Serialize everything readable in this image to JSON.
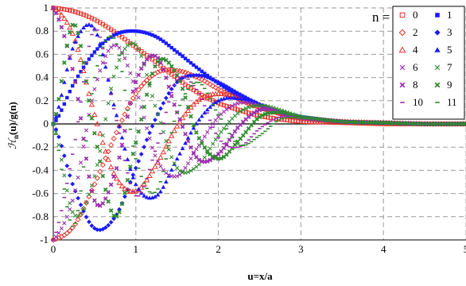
{
  "chart_data": {
    "type": "scatter",
    "title": "",
    "xlabel": "u=x/a",
    "ylabel": "ℋn(u)/g(n)",
    "ylabel_main": "ℋ",
    "ylabel_sub": "n",
    "ylabel_rest": "(u)/g(n)",
    "xlim": [
      0,
      5
    ],
    "ylim": [
      -1,
      1
    ],
    "x_ticks": [
      0,
      1,
      2,
      3,
      4,
      5
    ],
    "x_tick_labels": [
      "0",
      "1",
      "2",
      "3",
      "4",
      "5"
    ],
    "y_ticks": [
      1,
      0.8,
      0.6,
      0.4,
      0.2,
      0,
      -0.2,
      -0.4,
      -0.6,
      -0.8,
      -1
    ],
    "y_tick_labels": [
      "1",
      "0.8",
      "0.6",
      "0.4",
      "0.2",
      "0",
      "-0.2",
      "-0.4",
      "-0.6",
      "-0.8",
      "-1"
    ],
    "grid": "dashed",
    "legend_title": "n =",
    "legend_position": "top-right",
    "sample_x": [
      0,
      0.25,
      0.5,
      0.75,
      1,
      1.25,
      1.5,
      1.75,
      2,
      2.25,
      2.5,
      2.75,
      3,
      3.5,
      4,
      4.5,
      5
    ],
    "series": [
      {
        "name": "0",
        "color": "#e8332b",
        "marker": "square-open",
        "values": [
          1,
          0.97,
          0.9,
          0.79,
          0.66,
          0.53,
          0.39,
          0.27,
          0.18,
          0.12,
          0.07,
          0.04,
          0.02,
          0.01,
          0,
          0,
          0
        ]
      },
      {
        "name": "1",
        "color": "#1a1aff",
        "marker": "square-filled",
        "values": [
          0,
          0.35,
          0.62,
          0.77,
          0.8,
          0.75,
          0.62,
          0.48,
          0.35,
          0.24,
          0.16,
          0.1,
          0.06,
          0.02,
          0.01,
          0,
          0
        ]
      },
      {
        "name": "2",
        "color": "#e8332b",
        "marker": "diamond-open",
        "values": [
          -1,
          -0.88,
          -0.52,
          -0.1,
          0.26,
          0.44,
          0.46,
          0.4,
          0.3,
          0.21,
          0.14,
          0.09,
          0.05,
          0.02,
          0.01,
          0,
          0
        ]
      },
      {
        "name": "3",
        "color": "#1a1aff",
        "marker": "diamond-filled",
        "values": [
          0,
          -0.55,
          -0.9,
          -0.8,
          -0.38,
          0.06,
          0.36,
          0.42,
          0.36,
          0.26,
          0.17,
          0.1,
          0.06,
          0.02,
          0.01,
          0,
          0
        ]
      },
      {
        "name": "4",
        "color": "#e8332b",
        "marker": "triangle-open",
        "values": [
          1,
          0.75,
          0.08,
          -0.45,
          -0.58,
          -0.35,
          -0.02,
          0.2,
          0.26,
          0.22,
          0.15,
          0.09,
          0.05,
          0.02,
          0.01,
          0,
          0
        ]
      },
      {
        "name": "5",
        "color": "#1a1aff",
        "marker": "triangle-filled",
        "values": [
          0,
          0.68,
          0.82,
          0.12,
          -0.52,
          -0.62,
          -0.3,
          0.02,
          0.2,
          0.22,
          0.17,
          0.1,
          0.06,
          0.02,
          0.01,
          0,
          0
        ]
      },
      {
        "name": "6",
        "color": "#9b2fae",
        "marker": "x",
        "values": [
          -1,
          -0.62,
          0.3,
          0.68,
          0.3,
          -0.3,
          -0.45,
          -0.2,
          0.06,
          0.18,
          0.16,
          0.1,
          0.06,
          0.02,
          0.01,
          0,
          0
        ]
      },
      {
        "name": "7",
        "color": "#2e8b2e",
        "marker": "x",
        "values": [
          0,
          -0.78,
          -0.45,
          0.45,
          0.68,
          0.12,
          -0.38,
          -0.36,
          -0.1,
          0.1,
          0.16,
          0.12,
          0.06,
          0.02,
          0.01,
          0,
          0
        ]
      },
      {
        "name": "8",
        "color": "#9b2fae",
        "marker": "x-bold",
        "values": [
          1,
          0.42,
          -0.66,
          -0.42,
          0.36,
          0.58,
          0.1,
          -0.3,
          -0.26,
          -0.02,
          0.12,
          0.1,
          0.05,
          0.02,
          0.01,
          0,
          0
        ]
      },
      {
        "name": "9",
        "color": "#2e8b2e",
        "marker": "x-bold",
        "values": [
          0,
          0.86,
          -0.08,
          -0.8,
          -0.16,
          0.52,
          0.42,
          -0.1,
          -0.3,
          -0.14,
          0.06,
          0.1,
          0.06,
          0.02,
          0.01,
          0,
          0
        ]
      },
      {
        "name": "10",
        "color": "#9b2fae",
        "marker": "dash",
        "values": [
          -1,
          -0.2,
          0.82,
          0.08,
          -0.62,
          -0.2,
          0.38,
          0.28,
          -0.12,
          -0.2,
          -0.04,
          0.06,
          0.05,
          0.02,
          0.01,
          0,
          0
        ]
      },
      {
        "name": "11",
        "color": "#2e8b2e",
        "marker": "dash",
        "values": [
          0,
          -0.88,
          0.4,
          0.72,
          -0.3,
          -0.58,
          0.1,
          0.36,
          0.08,
          -0.18,
          -0.1,
          0.04,
          0.05,
          0.02,
          0.01,
          0,
          0
        ]
      }
    ]
  }
}
